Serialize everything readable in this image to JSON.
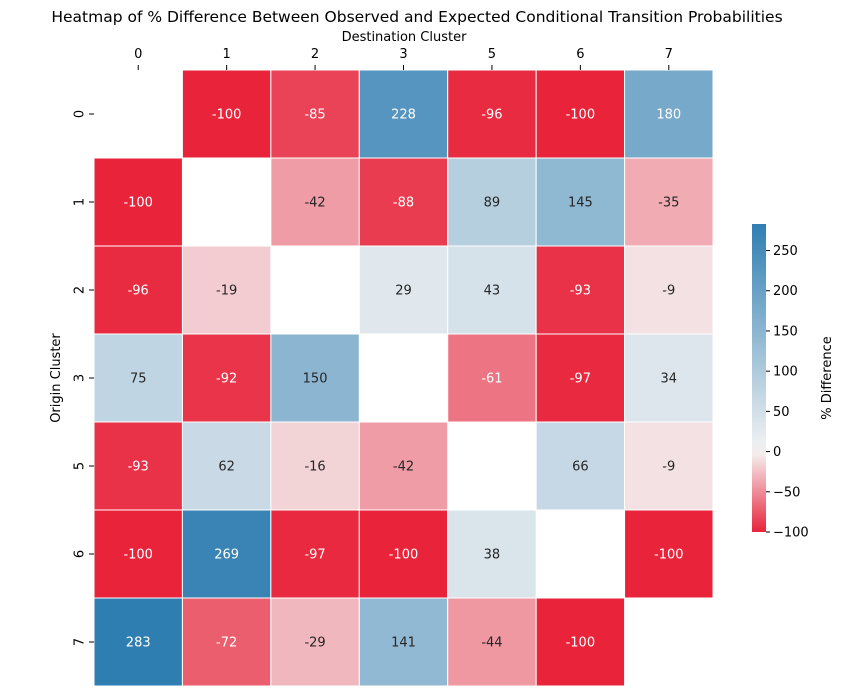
{
  "chart_data": {
    "type": "heatmap",
    "title": "Heatmap of % Difference Between Observed and Expected Conditional Transition Probabilities",
    "xlabel": "Destination Cluster",
    "ylabel": "Origin Cluster",
    "x_categories": [
      "0",
      "1",
      "2",
      "3",
      "5",
      "6",
      "7"
    ],
    "y_categories": [
      "0",
      "1",
      "2",
      "3",
      "5",
      "6",
      "7"
    ],
    "values": [
      [
        null,
        -100,
        -85,
        228,
        -96,
        -100,
        180
      ],
      [
        -100,
        null,
        -42,
        -88,
        89,
        145,
        -35
      ],
      [
        -96,
        -19,
        null,
        29,
        43,
        -93,
        -9
      ],
      [
        75,
        -92,
        150,
        null,
        -61,
        -97,
        34
      ],
      [
        -93,
        62,
        -16,
        -42,
        null,
        66,
        -9
      ],
      [
        -100,
        269,
        -97,
        -100,
        38,
        null,
        -100
      ],
      [
        283,
        -72,
        -29,
        141,
        -44,
        -100,
        null
      ]
    ],
    "x_axis_position": "top",
    "colorbar": {
      "label": "% Difference",
      "range": [
        -100,
        283
      ],
      "ticks": [
        -100,
        -50,
        0,
        50,
        100,
        150,
        200,
        250
      ],
      "tick_labels": [
        "−100",
        "−50",
        "0",
        "50",
        "100",
        "150",
        "200",
        "250"
      ]
    },
    "colors": {
      "negative": "#e8233a",
      "center": "#f4f4f4",
      "positive": "#2f7eb2",
      "cell_border": "#ffffff",
      "text_light": "#ffffff",
      "text_dark": "#262626"
    }
  }
}
